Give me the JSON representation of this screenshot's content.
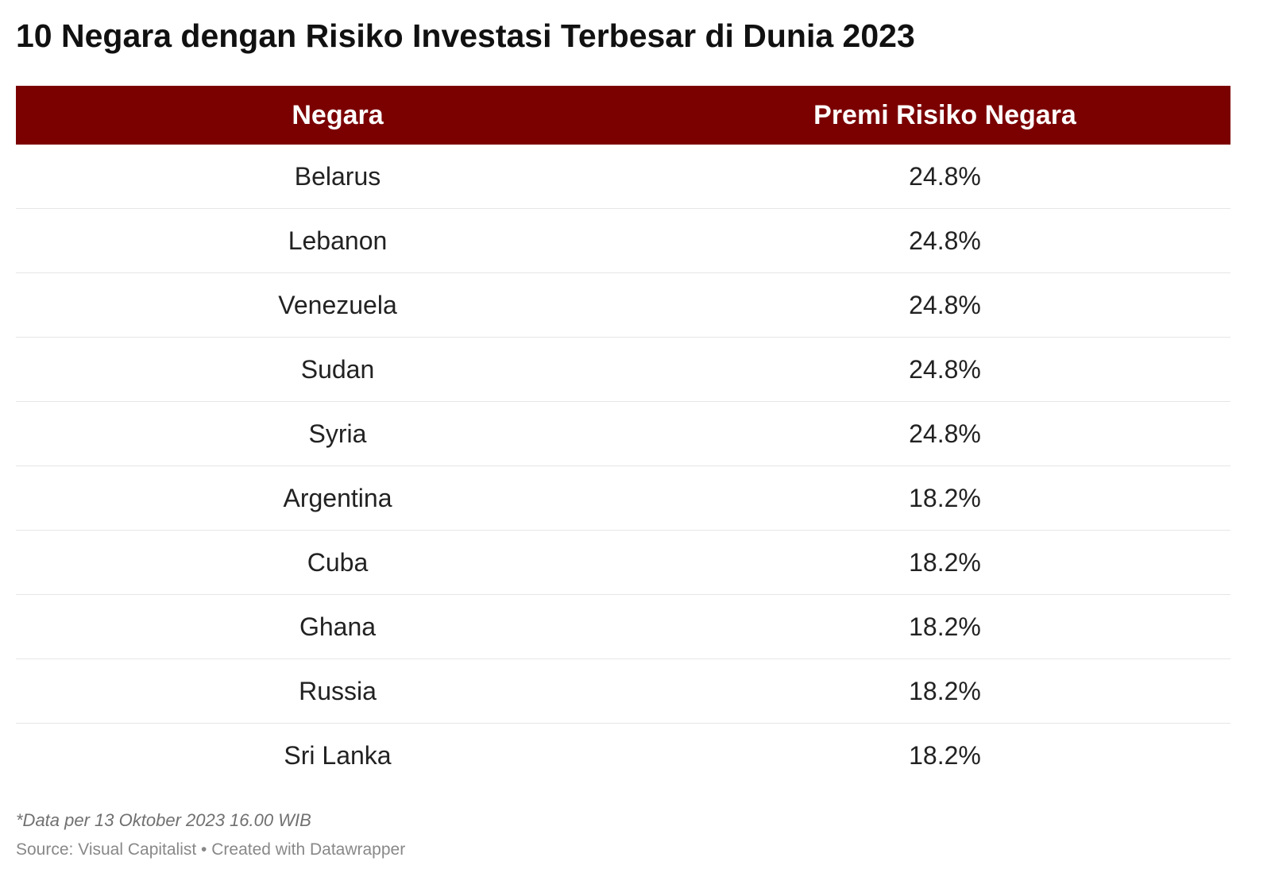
{
  "chart_data": {
    "type": "table",
    "title": "10 Negara dengan Risiko Investasi Terbesar di Dunia 2023",
    "columns": [
      "Negara",
      "Premi Risiko Negara"
    ],
    "rows": [
      {
        "country": "Belarus",
        "value": "24.8%"
      },
      {
        "country": "Lebanon",
        "value": "24.8%"
      },
      {
        "country": "Venezuela",
        "value": "24.8%"
      },
      {
        "country": "Sudan",
        "value": "24.8%"
      },
      {
        "country": "Syria",
        "value": "24.8%"
      },
      {
        "country": "Argentina",
        "value": "18.2%"
      },
      {
        "country": "Cuba",
        "value": "18.2%"
      },
      {
        "country": "Ghana",
        "value": "18.2%"
      },
      {
        "country": "Russia",
        "value": "18.2%"
      },
      {
        "country": "Sri Lanka",
        "value": "18.2%"
      }
    ],
    "note": "*Data per 13 Oktober 2023 16.00 WIB",
    "source": "Source: Visual Capitalist • Created with Datawrapper"
  },
  "colors": {
    "header_background": "#7b0000",
    "header_text": "#ffffff",
    "row_divider": "#e6e6e6"
  }
}
